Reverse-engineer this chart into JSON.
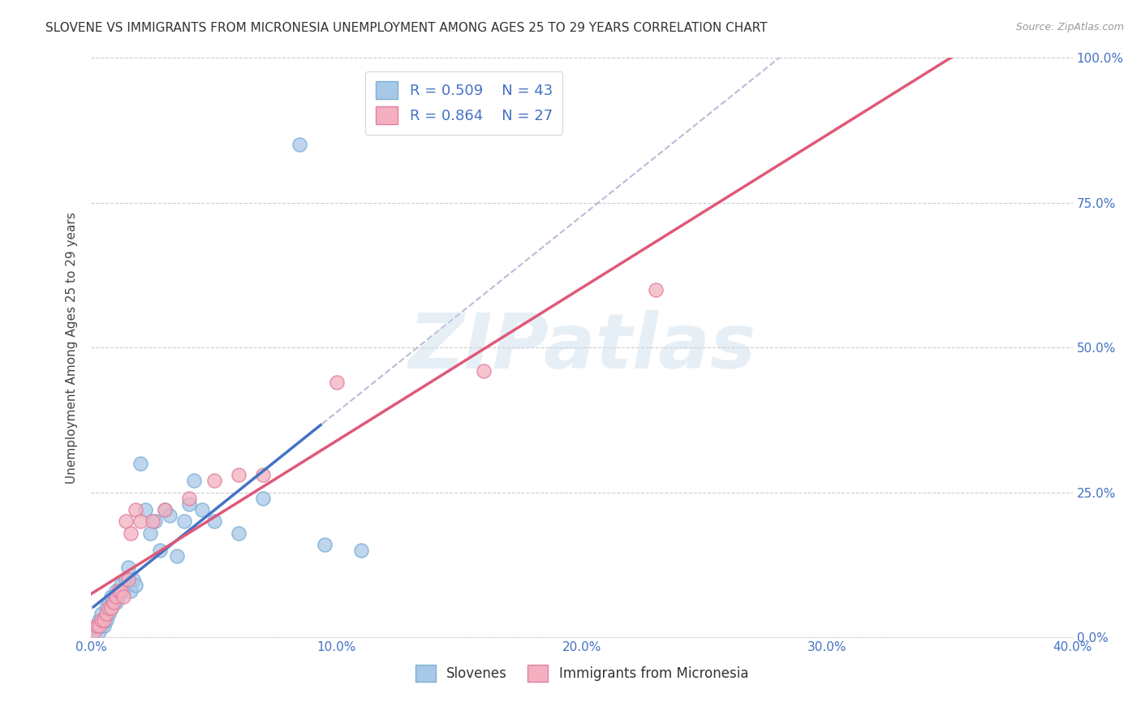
{
  "title": "SLOVENE VS IMMIGRANTS FROM MICRONESIA UNEMPLOYMENT AMONG AGES 25 TO 29 YEARS CORRELATION CHART",
  "source": "Source: ZipAtlas.com",
  "ylabel": "Unemployment Among Ages 25 to 29 years",
  "xlim": [
    0.0,
    0.4
  ],
  "ylim": [
    0.0,
    1.0
  ],
  "xticks": [
    0.0,
    0.1,
    0.2,
    0.3,
    0.4
  ],
  "xtick_labels": [
    "0.0%",
    "10.0%",
    "20.0%",
    "30.0%",
    "40.0%"
  ],
  "yticks": [
    0.0,
    0.25,
    0.5,
    0.75,
    1.0
  ],
  "ytick_labels": [
    "0.0%",
    "25.0%",
    "50.0%",
    "75.0%",
    "100.0%"
  ],
  "tick_color": "#4472c4",
  "slovene_color": "#a8c8e8",
  "slovene_edge": "#7bafd4",
  "micronesia_color": "#f4b0c0",
  "micronesia_edge": "#e080a0",
  "slovene_line_color": "#4472c4",
  "micronesia_line_color": "#e05878",
  "slovene_dash_color": "#aaaacc",
  "R_slovene": 0.509,
  "N_slovene": 43,
  "R_micronesia": 0.864,
  "N_micronesia": 27,
  "legend_slovene": "Slovenes",
  "legend_micronesia": "Immigrants from Micronesia",
  "watermark": "ZIPatlas",
  "background_color": "#ffffff",
  "grid_color": "#cccccc",
  "slovene_x": [
    0.001,
    0.002,
    0.003,
    0.003,
    0.004,
    0.004,
    0.005,
    0.005,
    0.006,
    0.006,
    0.007,
    0.007,
    0.008,
    0.008,
    0.009,
    0.01,
    0.01,
    0.011,
    0.012,
    0.013,
    0.014,
    0.015,
    0.016,
    0.017,
    0.018,
    0.02,
    0.022,
    0.024,
    0.026,
    0.028,
    0.03,
    0.032,
    0.035,
    0.038,
    0.04,
    0.042,
    0.045,
    0.05,
    0.06,
    0.07,
    0.085,
    0.095,
    0.11
  ],
  "slovene_y": [
    0.01,
    0.02,
    0.01,
    0.03,
    0.02,
    0.04,
    0.02,
    0.03,
    0.03,
    0.05,
    0.04,
    0.06,
    0.05,
    0.07,
    0.06,
    0.06,
    0.08,
    0.07,
    0.09,
    0.08,
    0.1,
    0.12,
    0.08,
    0.1,
    0.09,
    0.3,
    0.22,
    0.18,
    0.2,
    0.15,
    0.22,
    0.21,
    0.14,
    0.2,
    0.23,
    0.27,
    0.22,
    0.2,
    0.18,
    0.24,
    0.85,
    0.16,
    0.15
  ],
  "micronesia_x": [
    0.001,
    0.002,
    0.003,
    0.004,
    0.005,
    0.006,
    0.007,
    0.008,
    0.009,
    0.01,
    0.011,
    0.012,
    0.013,
    0.014,
    0.015,
    0.016,
    0.018,
    0.02,
    0.025,
    0.03,
    0.04,
    0.05,
    0.06,
    0.07,
    0.1,
    0.16,
    0.23
  ],
  "micronesia_y": [
    0.01,
    0.02,
    0.02,
    0.03,
    0.03,
    0.04,
    0.05,
    0.05,
    0.06,
    0.07,
    0.08,
    0.08,
    0.07,
    0.2,
    0.1,
    0.18,
    0.22,
    0.2,
    0.2,
    0.22,
    0.24,
    0.27,
    0.28,
    0.28,
    0.44,
    0.46,
    0.6
  ]
}
